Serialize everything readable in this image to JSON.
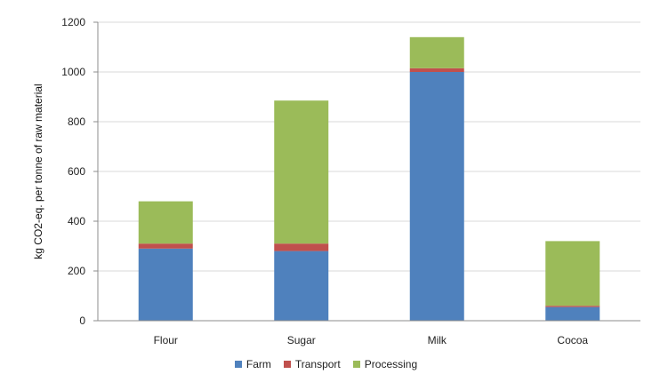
{
  "chart_data": {
    "type": "bar",
    "stacked": true,
    "title": "",
    "xlabel": "",
    "ylabel": "kg CO2-eq. per tonne of raw material",
    "ylim": [
      0,
      1200
    ],
    "yticks": [
      "0",
      "200",
      "400",
      "600",
      "800",
      "1000",
      "1200"
    ],
    "grid": true,
    "legend_position": "bottom",
    "categories": [
      "Flour",
      "Sugar",
      "Milk",
      "Cocoa"
    ],
    "series": [
      {
        "name": "Farm",
        "color": "#4f81bd",
        "values": [
          290,
          280,
          1000,
          55
        ]
      },
      {
        "name": "Transport",
        "color": "#c0504d",
        "values": [
          20,
          30,
          15,
          5
        ]
      },
      {
        "name": "Processing",
        "color": "#9bbb59",
        "values": [
          170,
          575,
          125,
          260
        ]
      }
    ]
  }
}
